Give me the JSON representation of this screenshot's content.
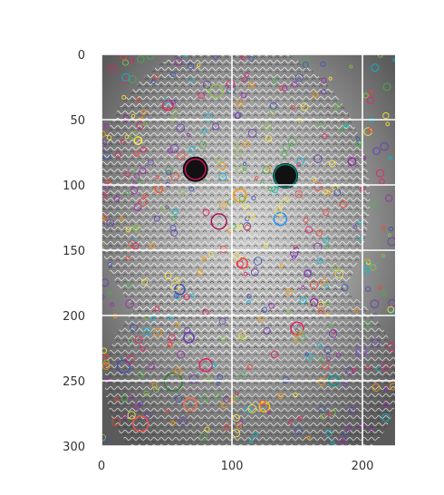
{
  "chart_data": {
    "type": "image",
    "title": "",
    "xlabel": "",
    "ylabel": "",
    "xlim": [
      0,
      225
    ],
    "ylim": [
      300,
      0
    ],
    "x_ticks": [
      0,
      100,
      200
    ],
    "y_ticks": [
      0,
      50,
      100,
      150,
      200,
      250,
      300
    ],
    "grid": true,
    "grid_color": "#ffffff",
    "image_description_tag": "grayscale-owl-with-feature-keypoints",
    "keypoints": [
      {
        "x": 72,
        "y": 88,
        "r": 8,
        "color": "#c2185b"
      },
      {
        "x": 141,
        "y": 93,
        "r": 9,
        "color": "#00897b"
      },
      {
        "x": 88,
        "y": 28,
        "r": 5,
        "color": "#8bc34a"
      },
      {
        "x": 51,
        "y": 39,
        "r": 4,
        "color": "#e91e63"
      },
      {
        "x": 28,
        "y": 66,
        "r": 3,
        "color": "#ffeb3b"
      },
      {
        "x": 198,
        "y": 68,
        "r": 3,
        "color": "#4caf50"
      },
      {
        "x": 192,
        "y": 82,
        "r": 3,
        "color": "#9c27b0"
      },
      {
        "x": 44,
        "y": 103,
        "r": 3,
        "color": "#ff5722"
      },
      {
        "x": 106,
        "y": 108,
        "r": 5,
        "color": "#ff9800"
      },
      {
        "x": 90,
        "y": 128,
        "r": 6,
        "color": "#ad1457"
      },
      {
        "x": 137,
        "y": 126,
        "r": 5,
        "color": "#2196f3"
      },
      {
        "x": 108,
        "y": 160,
        "r": 4,
        "color": "#f44336"
      },
      {
        "x": 60,
        "y": 180,
        "r": 4,
        "color": "#3f51b5"
      },
      {
        "x": 163,
        "y": 190,
        "r": 3,
        "color": "#9c27b0"
      },
      {
        "x": 150,
        "y": 210,
        "r": 5,
        "color": "#e91e63"
      },
      {
        "x": 67,
        "y": 217,
        "r": 4,
        "color": "#673ab7"
      },
      {
        "x": 80,
        "y": 238,
        "r": 5,
        "color": "#e91e63"
      },
      {
        "x": 17,
        "y": 239,
        "r": 5,
        "color": "#3f51b5"
      },
      {
        "x": 55,
        "y": 251,
        "r": 7,
        "color": "#2e7d32"
      },
      {
        "x": 68,
        "y": 268,
        "r": 5,
        "color": "#ff7043"
      },
      {
        "x": 30,
        "y": 283,
        "r": 6,
        "color": "#ef5350"
      },
      {
        "x": 178,
        "y": 250,
        "r": 4,
        "color": "#009688"
      },
      {
        "x": 199,
        "y": 228,
        "r": 4,
        "color": "#7e57c2"
      },
      {
        "x": 125,
        "y": 270,
        "r": 4,
        "color": "#ffc107"
      }
    ]
  }
}
